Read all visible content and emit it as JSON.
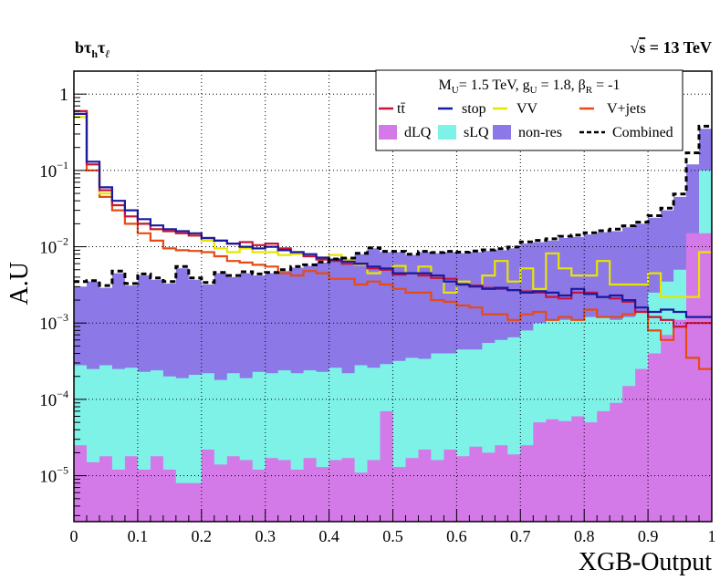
{
  "chart_data": {
    "type": "histogram",
    "xlabel": "XGB-Output",
    "ylabel": "A.U",
    "xlim": [
      0,
      1
    ],
    "ylim": [
      2.5e-06,
      2
    ],
    "yscale": "log",
    "grid": true,
    "bins": 50,
    "channel_label": {
      "base": "bτ",
      "sub1": "h",
      "mid": "τ",
      "sub2": "ℓ"
    },
    "energy_label": {
      "root": "√",
      "s": "s",
      "rest": " = 13 TeV"
    },
    "x_ticks": [
      "0",
      "0.1",
      "0.2",
      "0.3",
      "0.4",
      "0.5",
      "0.6",
      "0.7",
      "0.8",
      "0.9",
      "1"
    ],
    "y_ticks": [
      {
        "value": 1,
        "base": "1",
        "exp": ""
      },
      {
        "value": 0.1,
        "base": "10",
        "exp": "−1"
      },
      {
        "value": 0.01,
        "base": "10",
        "exp": "−2"
      },
      {
        "value": 0.001,
        "base": "10",
        "exp": "−3"
      },
      {
        "value": 0.0001,
        "base": "10",
        "exp": "−4"
      },
      {
        "value": 1e-05,
        "base": "10",
        "exp": "−5"
      }
    ],
    "legend": {
      "position": "top-right",
      "header": {
        "m": "M",
        "m_sub": "U",
        "m_val": "= 1.5 TeV, g",
        "g_sub": "U",
        "g_val": " = 1.8, β",
        "b_sub": "R",
        "b_val": " = -1"
      },
      "entries": [
        {
          "label": "tt̄",
          "key": "ttbar",
          "style": "line"
        },
        {
          "label": "stop",
          "key": "stop",
          "style": "line"
        },
        {
          "label": "VV",
          "key": "vv",
          "style": "line"
        },
        {
          "label": "V+jets",
          "key": "vjets",
          "style": "line"
        },
        {
          "label": "dLQ",
          "key": "dlq",
          "style": "fill"
        },
        {
          "label": "sLQ",
          "key": "slq",
          "style": "fill"
        },
        {
          "label": "non-res",
          "key": "nonres",
          "style": "fill"
        },
        {
          "label": "Combined",
          "key": "combined",
          "style": "dashed"
        }
      ]
    },
    "colors": {
      "ttbar": "#c8143c",
      "stop": "#1a1aa0",
      "vv": "#e6e600",
      "vjets": "#e64b14",
      "dlq": "#d47ae8",
      "slq": "#7ff2e8",
      "nonres": "#8c78e6",
      "combined": "#000000"
    },
    "series": {
      "dlq": [
        2.5e-05,
        1.5e-05,
        1.8e-05,
        1.2e-05,
        1.8e-05,
        1.2e-05,
        1.8e-05,
        1.2e-05,
        8e-06,
        8e-06,
        2.2e-05,
        1.4e-05,
        1.8e-05,
        1.6e-05,
        1.2e-05,
        1.7e-05,
        1.6e-05,
        1.2e-05,
        1.7e-05,
        1.3e-05,
        1.6e-05,
        1.7e-05,
        1.1e-05,
        1.6e-05,
        7e-05,
        1.3e-05,
        1.7e-05,
        2.2e-05,
        1.6e-05,
        2.2e-05,
        1.8e-05,
        2.4e-05,
        2e-05,
        2.5e-05,
        1.9e-05,
        2.5e-05,
        5e-05,
        5.5e-05,
        5.2e-05,
        6e-05,
        5e-05,
        7e-05,
        9e-05,
        0.00015,
        0.00025,
        0.0004,
        0.0007,
        0.0011,
        0.015,
        0.015
      ],
      "stack_slq": [
        0.00028,
        0.00025,
        0.00028,
        0.00025,
        0.00026,
        0.00023,
        0.00024,
        0.0002,
        0.00019,
        0.00021,
        0.00022,
        0.00018,
        0.00022,
        0.00019,
        0.00023,
        0.00022,
        0.00024,
        0.00022,
        0.00024,
        0.00023,
        0.00026,
        0.00022,
        0.00028,
        0.00026,
        0.00029,
        0.00032,
        0.00035,
        0.00034,
        0.0004,
        0.0004,
        0.00045,
        0.00045,
        0.00055,
        0.0006,
        0.00065,
        0.0008,
        0.001,
        0.0011,
        0.0011,
        0.0011,
        0.0012,
        0.0012,
        0.0011,
        0.0012,
        0.0014,
        0.0025,
        0.0035,
        0.005,
        0.0095,
        0.1
      ],
      "stack_nonres": [
        0.003,
        0.0035,
        0.0029,
        0.0045,
        0.0031,
        0.0042,
        0.0037,
        0.0033,
        0.0052,
        0.0037,
        0.0032,
        0.0045,
        0.004,
        0.0045,
        0.0042,
        0.0045,
        0.0048,
        0.0053,
        0.0056,
        0.0062,
        0.0068,
        0.007,
        0.008,
        0.0095,
        0.0085,
        0.0085,
        0.0078,
        0.0085,
        0.0082,
        0.0085,
        0.0082,
        0.0085,
        0.0088,
        0.009,
        0.0095,
        0.011,
        0.0115,
        0.012,
        0.013,
        0.0135,
        0.0145,
        0.0155,
        0.016,
        0.018,
        0.02,
        0.024,
        0.03,
        0.045,
        0.12,
        0.35
      ],
      "combined": [
        0.0035,
        0.0036,
        0.0031,
        0.0048,
        0.0033,
        0.0044,
        0.0039,
        0.0035,
        0.0055,
        0.0039,
        0.0034,
        0.0046,
        0.0042,
        0.0047,
        0.0044,
        0.0046,
        0.005,
        0.0055,
        0.0058,
        0.0063,
        0.0069,
        0.0071,
        0.0082,
        0.0097,
        0.0087,
        0.0087,
        0.008,
        0.0087,
        0.0084,
        0.0087,
        0.0085,
        0.0088,
        0.0091,
        0.0094,
        0.0099,
        0.0116,
        0.0121,
        0.0127,
        0.0137,
        0.0142,
        0.0152,
        0.0162,
        0.017,
        0.0188,
        0.021,
        0.0255,
        0.032,
        0.049,
        0.17,
        0.38
      ],
      "ttbar": [
        0.6,
        0.12,
        0.055,
        0.035,
        0.025,
        0.02,
        0.017,
        0.016,
        0.015,
        0.014,
        0.013,
        0.012,
        0.011,
        0.0115,
        0.0105,
        0.011,
        0.0095,
        0.0085,
        0.0075,
        0.0068,
        0.0065,
        0.006,
        0.006,
        0.0052,
        0.005,
        0.0043,
        0.0045,
        0.0042,
        0.0039,
        0.0038,
        0.0032,
        0.0031,
        0.0029,
        0.0028,
        0.0027,
        0.0026,
        0.0025,
        0.0022,
        0.0021,
        0.0025,
        0.0025,
        0.0022,
        0.0021,
        0.0019,
        0.0014,
        0.0012,
        0.0011,
        0.0009,
        0.001,
        0.001
      ],
      "stop": [
        0.55,
        0.13,
        0.06,
        0.04,
        0.03,
        0.023,
        0.019,
        0.017,
        0.016,
        0.015,
        0.013,
        0.012,
        0.011,
        0.01,
        0.0095,
        0.01,
        0.009,
        0.0085,
        0.008,
        0.0072,
        0.0068,
        0.0064,
        0.006,
        0.0055,
        0.0052,
        0.0045,
        0.0045,
        0.0045,
        0.0042,
        0.0035,
        0.0032,
        0.003,
        0.0028,
        0.0029,
        0.0027,
        0.0025,
        0.0026,
        0.0025,
        0.0023,
        0.0028,
        0.0024,
        0.0022,
        0.0023,
        0.002,
        0.0016,
        0.0014,
        0.0015,
        0.0014,
        0.0012,
        0.0012
      ],
      "vv": [
        0.5,
        0.12,
        0.05,
        0.035,
        0.025,
        0.02,
        0.017,
        0.016,
        0.015,
        0.014,
        0.012,
        0.0095,
        0.0085,
        0.0095,
        0.0085,
        0.0085,
        0.0078,
        0.008,
        0.0075,
        0.0072,
        0.0078,
        0.0068,
        0.0058,
        0.0045,
        0.0052,
        0.0056,
        0.0045,
        0.0055,
        0.0042,
        0.0025,
        0.0035,
        0.003,
        0.0042,
        0.0065,
        0.0035,
        0.0052,
        0.0028,
        0.0082,
        0.0052,
        0.0042,
        0.0042,
        0.0065,
        0.0032,
        0.0032,
        0.0032,
        0.0045,
        0.0022,
        0.0022,
        0.0022,
        0.0085
      ],
      "vjets": [
        0.6,
        0.1,
        0.045,
        0.03,
        0.02,
        0.015,
        0.012,
        0.0095,
        0.009,
        0.0088,
        0.0085,
        0.0075,
        0.0065,
        0.0062,
        0.0058,
        0.0055,
        0.0045,
        0.0042,
        0.0048,
        0.0045,
        0.0038,
        0.0038,
        0.0032,
        0.0035,
        0.0032,
        0.0028,
        0.0025,
        0.0025,
        0.002,
        0.0019,
        0.0017,
        0.0016,
        0.0013,
        0.0013,
        0.0011,
        0.0013,
        0.0014,
        0.0011,
        0.0012,
        0.0011,
        0.0015,
        0.0012,
        0.0012,
        0.0013,
        0.0014,
        0.0008,
        0.0006,
        0.0009,
        0.00035,
        0.00025
      ]
    }
  }
}
